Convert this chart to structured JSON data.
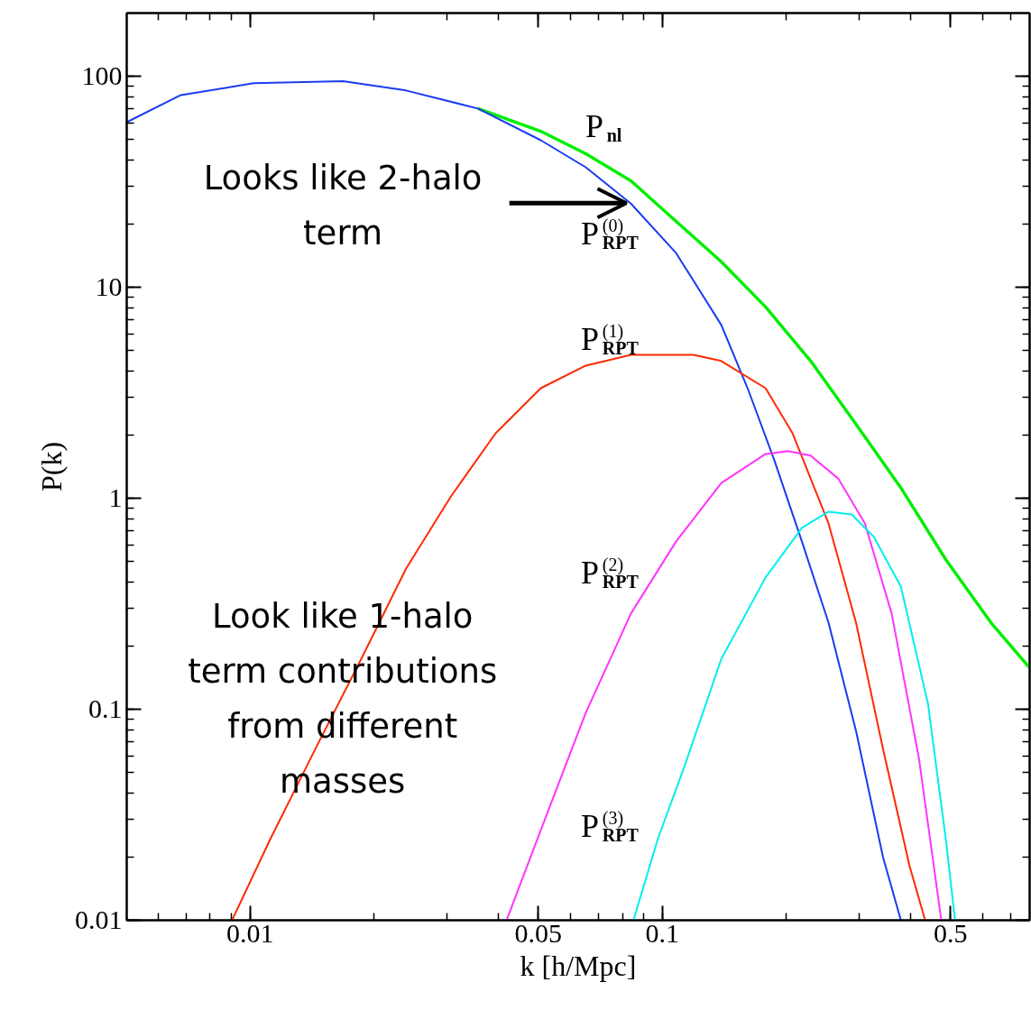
{
  "chart_data": {
    "type": "line",
    "xlabel": "k [h/Mpc]",
    "ylabel": "P(k)",
    "log": "xy",
    "xlim": [
      0.00502,
      0.778
    ],
    "ylim": [
      0.01,
      199
    ],
    "xticks": [
      0.01,
      0.05,
      0.1,
      0.5
    ],
    "yticks": [
      0.01,
      0.1,
      1,
      10,
      100
    ],
    "grid": false,
    "marker": "none",
    "line_style": "solid",
    "series": [
      {
        "name": "P$_{nl}$",
        "color": "#00ee00",
        "x": [
          0.0357,
          0.0507,
          0.0652,
          0.0839,
          0.108,
          0.139,
          0.178,
          0.229,
          0.295,
          0.379,
          0.487,
          0.627,
          0.778
        ],
        "values": [
          70.2,
          54.8,
          42.9,
          31.9,
          20.5,
          13.2,
          8.06,
          4.47,
          2.24,
          1.12,
          0.512,
          0.257,
          0.157
        ]
      },
      {
        "name": "P$^{(0)}$$_{RPT}$",
        "color": "#1a3cf0",
        "x": [
          0.00502,
          0.00679,
          0.0102,
          0.0168,
          0.0239,
          0.0357,
          0.0507,
          0.0652,
          0.0839,
          0.108,
          0.139,
          0.161,
          0.187,
          0.218,
          0.253,
          0.295,
          0.343,
          0.379
        ],
        "values": [
          60.5,
          81.3,
          92.5,
          94.6,
          85.5,
          70.2,
          49.7,
          37.0,
          24.9,
          14.5,
          6.62,
          3.32,
          1.51,
          0.624,
          0.257,
          0.0789,
          0.0199,
          0.01
        ]
      },
      {
        "name": "P$^{(1)}$$_{RPT}$",
        "color": "#ff2a00",
        "x": [
          0.00904,
          0.0112,
          0.0144,
          0.0186,
          0.0239,
          0.0307,
          0.0394,
          0.0507,
          0.0652,
          0.0839,
          0.119,
          0.139,
          0.178,
          0.207,
          0.253,
          0.295,
          0.343,
          0.398,
          0.434
        ],
        "values": [
          0.01,
          0.0243,
          0.0649,
          0.173,
          0.464,
          1.02,
          2.03,
          3.32,
          4.25,
          4.78,
          4.78,
          4.47,
          3.32,
          2.03,
          0.759,
          0.257,
          0.0649,
          0.018,
          0.01
        ]
      },
      {
        "name": "P$^{(2)}$$_{RPT}$",
        "color": "#ff33ff",
        "x": [
          0.0419,
          0.0507,
          0.0652,
          0.0839,
          0.108,
          0.139,
          0.178,
          0.202,
          0.229,
          0.267,
          0.31,
          0.36,
          0.419,
          0.475
        ],
        "values": [
          0.01,
          0.0267,
          0.0962,
          0.284,
          0.624,
          1.18,
          1.62,
          1.67,
          1.59,
          1.24,
          0.759,
          0.284,
          0.0588,
          0.01
        ]
      },
      {
        "name": "P$^{(3)}$$_{RPT}$",
        "color": "#00eeee",
        "x": [
          0.0851,
          0.0975,
          0.113,
          0.139,
          0.178,
          0.218,
          0.253,
          0.288,
          0.326,
          0.379,
          0.441,
          0.487,
          0.513
        ],
        "values": [
          0.01,
          0.0243,
          0.0532,
          0.173,
          0.421,
          0.723,
          0.863,
          0.838,
          0.655,
          0.381,
          0.106,
          0.0243,
          0.01
        ]
      }
    ],
    "annotations": [
      {
        "text": "Looks like 2-halo\nterm",
        "x": 0.0818,
        "y": 25
      },
      "Look like 1-halo\nterm contributions\nfrom different\nmasses"
    ]
  }
}
